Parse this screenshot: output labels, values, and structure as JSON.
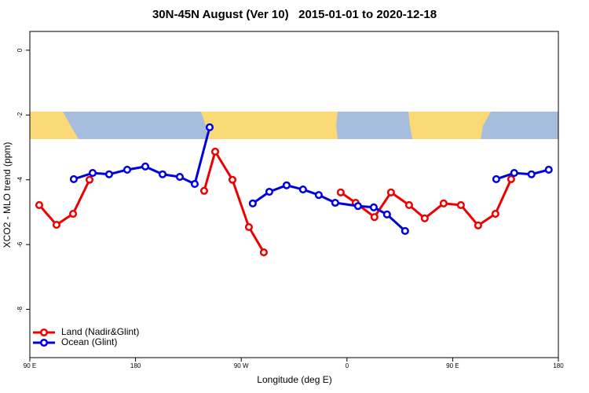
{
  "chart_data": {
    "type": "line",
    "title": "30N-45N August (Ver 10)   2015-01-01 to 2020-12-18",
    "x_label": "Longitude (deg E)",
    "y_label": "XCO2 - MLO trend (ppm)",
    "xlim": [
      90,
      540
    ],
    "xticks": [
      {
        "value": 90,
        "label": "90 E"
      },
      180,
      {
        "value": 270,
        "label": "90 W"
      },
      {
        "value": 360,
        "label": "0"
      },
      {
        "value": 450,
        "label": "90 E"
      },
      180
    ],
    "ylim": [
      -9.49,
      0.58
    ],
    "yticks": [
      0,
      -2,
      -4,
      -6,
      -8
    ],
    "legend": "bottom-left",
    "series": [
      {
        "name": "Land (Nadir&Glint)",
        "color": "#ee0000",
        "x": [
          98.0,
          112.7,
          126.8,
          140.8,
          null,
          238.4,
          247.8,
          262.5,
          276.5,
          289.2,
          null,
          354.7,
          367.4,
          383.4,
          397.5,
          412.9,
          426.2,
          442.3,
          457.0,
          471.7,
          486.4,
          499.8
        ],
        "values": [
          -4.78,
          -5.39,
          -5.05,
          -4.0,
          null,
          -4.34,
          -3.13,
          -4.0,
          -5.46,
          -6.24,
          null,
          -4.39,
          -4.71,
          -5.15,
          -4.39,
          -4.78,
          -5.19,
          -4.73,
          -4.78,
          -5.41,
          -5.05,
          -3.98
        ]
      },
      {
        "name": "Ocean (Glint)",
        "color": "#0000dd",
        "x": [
          127.4,
          143.5,
          157.5,
          172.9,
          188.3,
          203.0,
          217.7,
          230.4,
          243.1,
          null,
          279.8,
          293.9,
          308.6,
          322.6,
          336.0,
          350.0,
          369.4,
          382.8,
          394.1,
          409.5,
          null,
          487.1,
          502.4,
          517.1,
          531.8
        ],
        "values": [
          -3.98,
          -3.79,
          -3.83,
          -3.69,
          -3.59,
          -3.83,
          -3.91,
          -4.13,
          -2.38,
          null,
          -4.73,
          -4.37,
          -4.17,
          -4.3,
          -4.47,
          -4.71,
          -4.81,
          -4.85,
          -5.07,
          -5.58,
          null,
          -3.98,
          -3.79,
          -3.83,
          -3.69
        ]
      }
    ]
  }
}
